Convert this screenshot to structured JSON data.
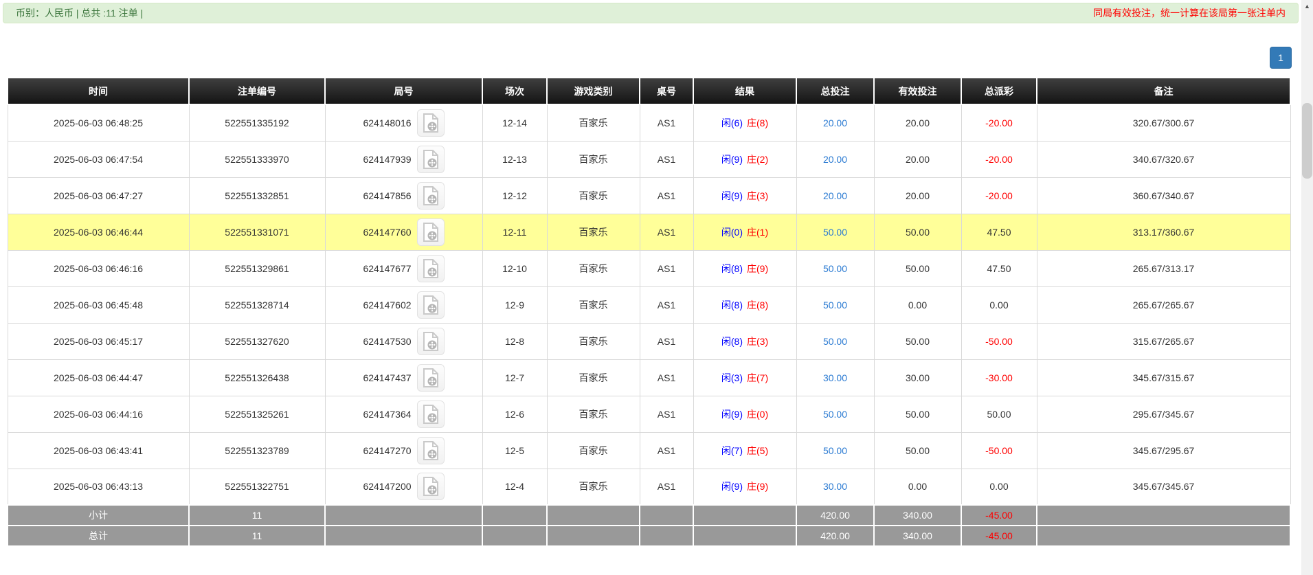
{
  "top_bar": {
    "summary": "币别：人民币 | 总共 :11 注单 |",
    "notice": "同局有效投注，统一计算在该局第一张注单内"
  },
  "pagination": {
    "current_page": "1"
  },
  "table": {
    "headers": [
      "时间",
      "注单编号",
      "局号",
      "场次",
      "游戏类别",
      "桌号",
      "结果",
      "总投注",
      "有效投注",
      "总派彩",
      "备注"
    ],
    "rows": [
      {
        "time": "2025-06-03 06:48:25",
        "bet_id": "522551335192",
        "round_id": "624148016",
        "session": "12-14",
        "game_type": "百家乐",
        "table_no": "AS1",
        "result_player": "闲(6)",
        "result_banker": "庄(8)",
        "total_bet": "20.00",
        "valid_bet": "20.00",
        "payout": "-20.00",
        "remark": "320.67/300.67",
        "highlighted": false
      },
      {
        "time": "2025-06-03 06:47:54",
        "bet_id": "522551333970",
        "round_id": "624147939",
        "session": "12-13",
        "game_type": "百家乐",
        "table_no": "AS1",
        "result_player": "闲(9)",
        "result_banker": "庄(2)",
        "total_bet": "20.00",
        "valid_bet": "20.00",
        "payout": "-20.00",
        "remark": "340.67/320.67",
        "highlighted": false
      },
      {
        "time": "2025-06-03 06:47:27",
        "bet_id": "522551332851",
        "round_id": "624147856",
        "session": "12-12",
        "game_type": "百家乐",
        "table_no": "AS1",
        "result_player": "闲(9)",
        "result_banker": "庄(3)",
        "total_bet": "20.00",
        "valid_bet": "20.00",
        "payout": "-20.00",
        "remark": "360.67/340.67",
        "highlighted": false
      },
      {
        "time": "2025-06-03 06:46:44",
        "bet_id": "522551331071",
        "round_id": "624147760",
        "session": "12-11",
        "game_type": "百家乐",
        "table_no": "AS1",
        "result_player": "闲(0)",
        "result_banker": "庄(1)",
        "total_bet": "50.00",
        "valid_bet": "50.00",
        "payout": "47.50",
        "remark": "313.17/360.67",
        "highlighted": true
      },
      {
        "time": "2025-06-03 06:46:16",
        "bet_id": "522551329861",
        "round_id": "624147677",
        "session": "12-10",
        "game_type": "百家乐",
        "table_no": "AS1",
        "result_player": "闲(8)",
        "result_banker": "庄(9)",
        "total_bet": "50.00",
        "valid_bet": "50.00",
        "payout": "47.50",
        "remark": "265.67/313.17",
        "highlighted": false
      },
      {
        "time": "2025-06-03 06:45:48",
        "bet_id": "522551328714",
        "round_id": "624147602",
        "session": "12-9",
        "game_type": "百家乐",
        "table_no": "AS1",
        "result_player": "闲(8)",
        "result_banker": "庄(8)",
        "total_bet": "50.00",
        "valid_bet": "0.00",
        "payout": "0.00",
        "remark": "265.67/265.67",
        "highlighted": false
      },
      {
        "time": "2025-06-03 06:45:17",
        "bet_id": "522551327620",
        "round_id": "624147530",
        "session": "12-8",
        "game_type": "百家乐",
        "table_no": "AS1",
        "result_player": "闲(8)",
        "result_banker": "庄(3)",
        "total_bet": "50.00",
        "valid_bet": "50.00",
        "payout": "-50.00",
        "remark": "315.67/265.67",
        "highlighted": false
      },
      {
        "time": "2025-06-03 06:44:47",
        "bet_id": "522551326438",
        "round_id": "624147437",
        "session": "12-7",
        "game_type": "百家乐",
        "table_no": "AS1",
        "result_player": "闲(3)",
        "result_banker": "庄(7)",
        "total_bet": "30.00",
        "valid_bet": "30.00",
        "payout": "-30.00",
        "remark": "345.67/315.67",
        "highlighted": false
      },
      {
        "time": "2025-06-03 06:44:16",
        "bet_id": "522551325261",
        "round_id": "624147364",
        "session": "12-6",
        "game_type": "百家乐",
        "table_no": "AS1",
        "result_player": "闲(9)",
        "result_banker": "庄(0)",
        "total_bet": "50.00",
        "valid_bet": "50.00",
        "payout": "50.00",
        "remark": "295.67/345.67",
        "highlighted": false
      },
      {
        "time": "2025-06-03 06:43:41",
        "bet_id": "522551323789",
        "round_id": "624147270",
        "session": "12-5",
        "game_type": "百家乐",
        "table_no": "AS1",
        "result_player": "闲(7)",
        "result_banker": "庄(5)",
        "total_bet": "50.00",
        "valid_bet": "50.00",
        "payout": "-50.00",
        "remark": "345.67/295.67",
        "highlighted": false
      },
      {
        "time": "2025-06-03 06:43:13",
        "bet_id": "522551322751",
        "round_id": "624147200",
        "session": "12-4",
        "game_type": "百家乐",
        "table_no": "AS1",
        "result_player": "闲(9)",
        "result_banker": "庄(9)",
        "total_bet": "30.00",
        "valid_bet": "0.00",
        "payout": "0.00",
        "remark": "345.67/345.67",
        "highlighted": false
      }
    ],
    "subtotal": {
      "label": "小计",
      "count": "11",
      "total_bet": "420.00",
      "valid_bet": "340.00",
      "payout": "-45.00"
    },
    "total": {
      "label": "总计",
      "count": "11",
      "total_bet": "420.00",
      "valid_bet": "340.00",
      "payout": "-45.00"
    }
  },
  "icons": {
    "scroll_up": "▲",
    "video_icon": "video-replay-icon"
  },
  "colors": {
    "success_bg": "#dff0d8",
    "notice_red": "#ff0000",
    "accent_blue": "#337ab7",
    "link_blue": "#2a7ad2",
    "player_blue": "#0000ff",
    "banker_red": "#ff0000",
    "highlight_yellow": "#ffff99",
    "summary_gray": "#999999",
    "header_bg": "#1c1c1c"
  }
}
